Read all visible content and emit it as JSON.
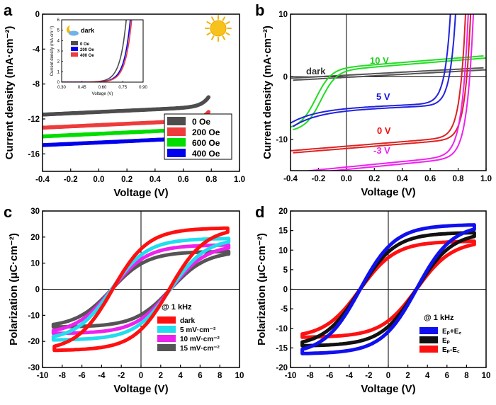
{
  "chart_data": [
    {
      "id": "a",
      "panel_letter": "a",
      "type": "line",
      "xlabel": "Voltage (V)",
      "ylabel": "Current density (mA·cm⁻²)",
      "xlim": [
        -0.4,
        1.0
      ],
      "ylim": [
        -18,
        0
      ],
      "xticks": [
        -0.4,
        -0.2,
        0.0,
        0.2,
        0.4,
        0.6,
        0.8,
        1.0
      ],
      "xtick_labels": [
        "-0.4",
        "-0.2",
        "0.0",
        "0.2",
        "0.4",
        "0.6",
        "0.8",
        "1.0"
      ],
      "yticks": [
        0,
        -4,
        -8,
        -12,
        -16
      ],
      "ytick_labels": [
        "0",
        "-4",
        "-8",
        "-12",
        "-16"
      ],
      "icon": "sun-icon",
      "legend": {
        "placement": "bottom-right",
        "entries": [
          "0 Oe",
          "200 Oe",
          "600 Oe",
          "400 Oe"
        ]
      },
      "series": [
        {
          "name": "0 Oe",
          "color": "#4d4d4d",
          "jsc": -11.5,
          "voc": 0.72
        },
        {
          "name": "200 Oe",
          "color": "#ee3b3b",
          "jsc": -13.0,
          "voc": 0.73
        },
        {
          "name": "600 Oe",
          "color": "#00dd00",
          "jsc": -14.0,
          "voc": 0.735
        },
        {
          "name": "400 Oe",
          "color": "#0000ee",
          "jsc": -15.0,
          "voc": 0.74
        }
      ],
      "inset": {
        "title": "dark",
        "icon": "moon-cloud-icon",
        "xlabel": "Voltage (V)",
        "ylabel": "Current density (mA·cm⁻²)",
        "xlim": [
          0.3,
          0.9
        ],
        "ylim": [
          0,
          6
        ],
        "xticks": [
          0.3,
          0.45,
          0.6,
          0.75,
          0.9
        ],
        "xtick_labels": [
          "0.30",
          "0.45",
          "0.60",
          "0.75",
          "0.90"
        ],
        "yticks": [
          0,
          1,
          2,
          3,
          4,
          5,
          6
        ],
        "ytick_labels": [
          "0",
          "1",
          "2",
          "3",
          "4",
          "5",
          "6"
        ],
        "legend": [
          "0 Oe",
          "200 Oe",
          "400 Oe"
        ],
        "series": [
          {
            "name": "0 Oe",
            "color": "#4d4d4d",
            "onset": 0.56
          },
          {
            "name": "200 Oe",
            "color": "#0000ee",
            "onset": 0.59
          },
          {
            "name": "400 Oe",
            "color": "#ee3b3b",
            "onset": 0.6
          }
        ]
      }
    },
    {
      "id": "b",
      "panel_letter": "b",
      "type": "line",
      "xlabel": "Voltage (V)",
      "ylabel": "Current density (mA·cm⁻²)",
      "xlim": [
        -0.4,
        1.0
      ],
      "ylim": [
        -15,
        10
      ],
      "xticks": [
        -0.4,
        -0.2,
        0.0,
        0.2,
        0.4,
        0.6,
        0.8,
        1.0
      ],
      "xtick_labels": [
        "-0.4",
        "-0.2",
        "0.0",
        "0.2",
        "0.4",
        "0.6",
        "0.8",
        "1.0"
      ],
      "yticks": [
        10,
        0,
        -10
      ],
      "ytick_labels": [
        "10",
        "0",
        "-10"
      ],
      "series": [
        {
          "name": "dark",
          "color": "#555555",
          "label_color": "#333333"
        },
        {
          "name": "10 V",
          "color": "#22dd22",
          "label_color": "#22cc22"
        },
        {
          "name": "5 V",
          "color": "#2222dd",
          "label_color": "#1111dd"
        },
        {
          "name": "0 V",
          "color": "#dd2222",
          "label_color": "#ee1111"
        },
        {
          "name": "-3 V",
          "color": "#ee22ee",
          "label_color": "#ee22ee"
        }
      ]
    },
    {
      "id": "c",
      "panel_letter": "c",
      "type": "line",
      "xlabel": "Voltage (V)",
      "ylabel": "Polarization (μC·cm⁻²)",
      "xlim": [
        -10,
        10
      ],
      "ylim": [
        -30,
        30
      ],
      "xticks": [
        -10,
        -8,
        -6,
        -4,
        -2,
        0,
        2,
        4,
        6,
        8,
        10
      ],
      "xtick_labels": [
        "-10",
        "-8",
        "-6",
        "-4",
        "-2",
        "0",
        "2",
        "4",
        "6",
        "8",
        "10"
      ],
      "yticks": [
        30,
        20,
        10,
        0,
        -10,
        -20,
        -30
      ],
      "ytick_labels": [
        "30",
        "20",
        "10",
        "0",
        "-10",
        "-20",
        "-30"
      ],
      "legend": {
        "title": "@ 1 kHz",
        "placement": "bottom-right",
        "entries": [
          "dark",
          "5 mV·cm⁻²",
          "10 mV·cm⁻²",
          "15 mV·cm⁻²"
        ]
      },
      "series": [
        {
          "name": "dark",
          "color": "#ff1010",
          "pmax": 23.5,
          "pr": 11,
          "ec": 2.9,
          "vmax": 8.8
        },
        {
          "name": "5 mV·cm⁻²",
          "color": "#22ddee",
          "pmax": 19.5,
          "pr": 9.5,
          "ec": 3.0,
          "vmax": 8.9
        },
        {
          "name": "10 mV·cm⁻²",
          "color": "#ee22ee",
          "pmax": 17,
          "pr": 8.5,
          "ec": 3.0,
          "vmax": 8.9
        },
        {
          "name": "15 mV·cm⁻²",
          "color": "#555555",
          "pmax": 14.5,
          "pr": 7.5,
          "ec": 3.0,
          "vmax": 8.9
        }
      ]
    },
    {
      "id": "d",
      "panel_letter": "d",
      "type": "line",
      "xlabel": "Voltage (V)",
      "ylabel": "Polarization (μC·cm⁻²)",
      "xlim": [
        -10,
        10
      ],
      "ylim": [
        -20,
        20
      ],
      "xticks": [
        -10,
        -8,
        -6,
        -4,
        -2,
        0,
        2,
        4,
        6,
        8,
        10
      ],
      "xtick_labels": [
        "-10",
        "-8",
        "-6",
        "-4",
        "-2",
        "0",
        "2",
        "4",
        "6",
        "8",
        "10"
      ],
      "yticks": [
        20,
        15,
        10,
        5,
        0,
        -5,
        -10,
        -15,
        -20
      ],
      "ytick_labels": [
        "20",
        "15",
        "10",
        "5",
        "0",
        "-5",
        "-10",
        "-15",
        "-20"
      ],
      "legend": {
        "title": "@ 1 kHz",
        "placement": "bottom-right",
        "entries": [
          "Eₚ+E꜀",
          "Eₚ",
          "Eₚ-E꜀"
        ]
      },
      "series": [
        {
          "name": "Eₚ+E꜀",
          "color": "#1010ee",
          "pmax": 16.5,
          "pr": 8.5,
          "ec": 2.9,
          "vmax": 8.8
        },
        {
          "name": "Eₚ",
          "color": "#111111",
          "pmax": 14.5,
          "pr": 7.2,
          "ec": 2.9,
          "vmax": 8.8
        },
        {
          "name": "Eₚ-E꜀",
          "color": "#ff1010",
          "pmax": 12.3,
          "pr": 6.2,
          "ec": 2.9,
          "vmax": 8.8
        }
      ]
    }
  ]
}
